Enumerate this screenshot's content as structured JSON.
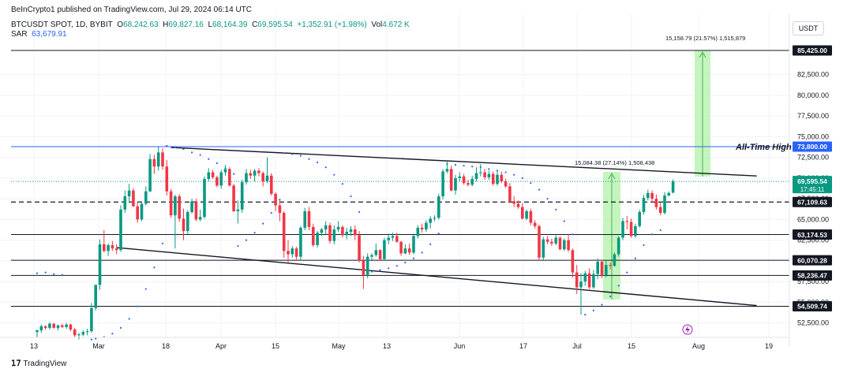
{
  "header": {
    "published": "BeInCrypto1 published on TradingView.com, Jul 29, 2024 06:14 UTC",
    "symbol": "BTCUSDT SPOT, 1D, BYBIT",
    "o_label": "O",
    "o_value": "68,242.63",
    "h_label": "H",
    "h_value": "69,827.16",
    "l_label": "L",
    "l_value": "68,164.39",
    "c_label": "C",
    "c_value": "69,595.54",
    "change": "+1,352.91 (+1.98%)",
    "vol_label": "Vol",
    "vol_value": "4.672 K",
    "sar_label": "SAR",
    "sar_value": "63,679.91",
    "currency": "USDT"
  },
  "footer": {
    "brand_icon": "tradingview-logo-icon",
    "brand": "TradingView"
  },
  "colors": {
    "up": "#089981",
    "down": "#f23645",
    "sar": "#2962ff",
    "ath_line": "#2962ff",
    "target_fill": "#b2f2a8",
    "target_arrow": "#4caf50"
  },
  "chart_data": {
    "type": "candlestick",
    "symbol": "BTCUSDT",
    "interval": "1D",
    "ylim": [
      51000,
      88500
    ],
    "x_ticks": [
      "13",
      "Mar",
      "18",
      "Apr",
      "15",
      "May",
      "13",
      "Jun",
      "17",
      "Jul",
      "15",
      "Aug",
      "19"
    ],
    "y_ticks": [
      "52,500.00",
      "55,000.00",
      "57,500.00",
      "60,000.00",
      "62,500.00",
      "65,000.00",
      "67,500.00",
      "70,000.00",
      "72,500.00",
      "75,000.00",
      "77,500.00",
      "80,000.00",
      "82,500.00"
    ],
    "price_levels": [
      {
        "value": 85425.0,
        "label": "85,425.00",
        "style": "solid"
      },
      {
        "value": 73800.0,
        "label": "73,800.00",
        "style": "ath"
      },
      {
        "value": 67109.63,
        "label": "67,109.63",
        "style": "dashed"
      },
      {
        "value": 63174.53,
        "label": "63,174.53",
        "style": "solid"
      },
      {
        "value": 60070.28,
        "label": "60,070.28",
        "style": "solid"
      },
      {
        "value": 58236.47,
        "label": "58,236.47",
        "style": "solid"
      },
      {
        "value": 54509.74,
        "label": "54,509.74",
        "style": "solid"
      }
    ],
    "last_price": {
      "value": 69595.54,
      "label": "69,595.54",
      "countdown": "17:45:11"
    },
    "annotations": {
      "ath_text": "All-Time High",
      "measure_1": "15,084.38 (27.14%) 1,508,438",
      "measure_2": "15,158.79 (21.57%) 1,515,879"
    },
    "channel": {
      "upper": [
        {
          "date": "2024-03-14",
          "price": 73700
        },
        {
          "date": "2024-08-01",
          "price": 70260
        }
      ],
      "lower": [
        {
          "date": "2024-03-01",
          "price": 61600
        },
        {
          "date": "2024-08-01",
          "price": 54600
        }
      ]
    },
    "candles": [
      [
        51400,
        51700,
        50800,
        51600
      ],
      [
        51600,
        52300,
        51300,
        52100
      ],
      [
        52100,
        52200,
        51700,
        51900
      ],
      [
        51900,
        52600,
        51700,
        52400
      ],
      [
        52400,
        52500,
        51800,
        51900
      ],
      [
        51900,
        52300,
        51600,
        52200
      ],
      [
        52200,
        52400,
        51900,
        52000
      ],
      [
        52000,
        52500,
        51800,
        52300
      ],
      [
        52300,
        52400,
        51500,
        51700
      ],
      [
        51700,
        51900,
        50800,
        51000
      ],
      [
        51000,
        51300,
        50500,
        51100
      ],
      [
        51100,
        51600,
        50900,
        51400
      ],
      [
        51400,
        51800,
        51000,
        51500
      ],
      [
        51500,
        54900,
        51300,
        54300
      ],
      [
        54300,
        57000,
        54000,
        57100
      ],
      [
        57100,
        62600,
        56500,
        62000
      ],
      [
        62000,
        63700,
        61000,
        61200
      ],
      [
        61200,
        62100,
        60600,
        61900
      ],
      [
        61900,
        62400,
        61200,
        61500
      ],
      [
        61500,
        62000,
        60800,
        61300
      ],
      [
        61300,
        66700,
        61100,
        66200
      ],
      [
        66200,
        68500,
        65800,
        67800
      ],
      [
        67800,
        69300,
        67000,
        68500
      ],
      [
        68500,
        68800,
        66500,
        66600
      ],
      [
        66600,
        67100,
        64600,
        65000
      ],
      [
        65000,
        67000,
        64800,
        66900
      ],
      [
        66900,
        69000,
        66700,
        68400
      ],
      [
        68400,
        72900,
        68300,
        72300
      ],
      [
        72300,
        72800,
        70500,
        71400
      ],
      [
        71400,
        73800,
        70900,
        73100
      ],
      [
        73100,
        73600,
        71000,
        71400
      ],
      [
        71400,
        72200,
        67900,
        68400
      ],
      [
        68400,
        68700,
        65200,
        65500
      ],
      [
        65500,
        68000,
        61500,
        67800
      ],
      [
        67800,
        68100,
        64700,
        65100
      ],
      [
        65100,
        66300,
        62500,
        63600
      ],
      [
        63600,
        66100,
        63200,
        65900
      ],
      [
        65900,
        67500,
        65700,
        67200
      ],
      [
        67200,
        67500,
        64800,
        65000
      ],
      [
        65000,
        66200,
        64800,
        65300
      ],
      [
        65300,
        70200,
        65100,
        69900
      ],
      [
        69900,
        71200,
        69600,
        70700
      ],
      [
        70700,
        71000,
        69900,
        70100
      ],
      [
        70100,
        70300,
        68900,
        69100
      ],
      [
        69100,
        71000,
        68700,
        70700
      ],
      [
        70700,
        71600,
        70300,
        71100
      ],
      [
        71100,
        71300,
        69000,
        69100
      ],
      [
        69100,
        69300,
        65900,
        66000
      ],
      [
        66000,
        67300,
        64500,
        66200
      ],
      [
        66200,
        69800,
        65800,
        69500
      ],
      [
        69500,
        71100,
        69200,
        70600
      ],
      [
        70600,
        71000,
        69900,
        70300
      ],
      [
        70300,
        71100,
        69600,
        70900
      ],
      [
        70900,
        71200,
        70200,
        70600
      ],
      [
        70600,
        70800,
        69000,
        69600
      ],
      [
        69600,
        72500,
        69400,
        70300
      ],
      [
        70300,
        70600,
        67900,
        68100
      ],
      [
        68100,
        68300,
        66000,
        66700
      ],
      [
        66700,
        67400,
        64800,
        65800
      ],
      [
        65800,
        66000,
        60400,
        61200
      ],
      [
        61200,
        62500,
        59800,
        60800
      ],
      [
        60800,
        61800,
        60400,
        61500
      ],
      [
        61500,
        61700,
        60000,
        60500
      ],
      [
        60500,
        64200,
        60000,
        64000
      ],
      [
        64000,
        66400,
        63700,
        66000
      ],
      [
        66000,
        66500,
        63700,
        64100
      ],
      [
        64100,
        64500,
        61700,
        61900
      ],
      [
        61900,
        63600,
        61600,
        63400
      ],
      [
        63400,
        64000,
        63000,
        63800
      ],
      [
        63800,
        64800,
        63200,
        64300
      ],
      [
        64300,
        64600,
        62100,
        62400
      ],
      [
        62400,
        64300,
        62000,
        63800
      ],
      [
        63800,
        64800,
        63500,
        64100
      ],
      [
        64100,
        64300,
        62800,
        63100
      ],
      [
        63100,
        64000,
        62600,
        63500
      ],
      [
        63500,
        64200,
        63000,
        63800
      ],
      [
        63800,
        64300,
        62500,
        63100
      ],
      [
        63100,
        63600,
        59800,
        60000
      ],
      [
        60000,
        60600,
        56600,
        58300
      ],
      [
        58300,
        60900,
        57900,
        60500
      ],
      [
        60500,
        60900,
        60100,
        60700
      ],
      [
        60700,
        62100,
        60500,
        61300
      ],
      [
        61300,
        61400,
        60100,
        60200
      ],
      [
        60200,
        62800,
        60000,
        62500
      ],
      [
        62500,
        63300,
        62000,
        62800
      ],
      [
        62800,
        63400,
        62400,
        63000
      ],
      [
        63000,
        63400,
        62200,
        62300
      ],
      [
        62300,
        62400,
        60600,
        60900
      ],
      [
        60900,
        62000,
        60800,
        61500
      ],
      [
        61500,
        62100,
        60700,
        61000
      ],
      [
        61000,
        63300,
        60800,
        63000
      ],
      [
        63000,
        64300,
        62700,
        64000
      ],
      [
        64000,
        64500,
        63400,
        63800
      ],
      [
        63800,
        64900,
        63500,
        64600
      ],
      [
        64600,
        65400,
        63900,
        65100
      ],
      [
        65100,
        65500,
        64800,
        65200
      ],
      [
        65200,
        68100,
        65000,
        67800
      ],
      [
        67800,
        71100,
        67400,
        70800
      ],
      [
        70800,
        72000,
        70600,
        71100
      ],
      [
        71100,
        71500,
        68400,
        68500
      ],
      [
        68500,
        70400,
        68000,
        70000
      ],
      [
        70000,
        70700,
        69600,
        70200
      ],
      [
        70200,
        70500,
        69200,
        69400
      ],
      [
        69400,
        69800,
        69000,
        69200
      ],
      [
        69200,
        70300,
        69000,
        69900
      ],
      [
        69900,
        71300,
        69600,
        70600
      ],
      [
        70600,
        71700,
        70200,
        70700
      ],
      [
        70700,
        71100,
        69800,
        70100
      ],
      [
        70100,
        70900,
        69800,
        70500
      ],
      [
        70500,
        70800,
        69100,
        69300
      ],
      [
        69300,
        70900,
        69100,
        70400
      ],
      [
        70400,
        70800,
        69400,
        69600
      ],
      [
        69600,
        69900,
        68800,
        69000
      ],
      [
        69000,
        69400,
        67000,
        67200
      ],
      [
        67200,
        67800,
        66500,
        66900
      ],
      [
        66900,
        67300,
        66300,
        66500
      ],
      [
        66500,
        67000,
        65000,
        65100
      ],
      [
        65100,
        66200,
        64900,
        66000
      ],
      [
        66000,
        66300,
        64300,
        64600
      ],
      [
        64600,
        64900,
        63900,
        64200
      ],
      [
        64200,
        64400,
        60000,
        60400
      ],
      [
        60400,
        62900,
        60100,
        62600
      ],
      [
        62600,
        63000,
        62000,
        62300
      ],
      [
        62300,
        62700,
        61800,
        62100
      ],
      [
        62100,
        63100,
        61900,
        62800
      ],
      [
        62800,
        62900,
        61300,
        61400
      ],
      [
        61400,
        62700,
        61200,
        62500
      ],
      [
        62500,
        63200,
        61100,
        61300
      ],
      [
        61300,
        61500,
        58000,
        58600
      ],
      [
        58600,
        59500,
        56000,
        56800
      ],
      [
        56800,
        58500,
        53500,
        57500
      ],
      [
        57500,
        58800,
        57000,
        58500
      ],
      [
        58500,
        59100,
        56600,
        56800
      ],
      [
        56800,
        58900,
        56600,
        58400
      ],
      [
        58400,
        60300,
        57800,
        59900
      ],
      [
        59900,
        60100,
        57900,
        58300
      ],
      [
        58300,
        60000,
        58000,
        59500
      ],
      [
        59500,
        59800,
        59000,
        59400
      ],
      [
        59400,
        61000,
        59300,
        60800
      ],
      [
        60800,
        63000,
        60500,
        62800
      ],
      [
        62800,
        65200,
        62500,
        64800
      ],
      [
        64800,
        65400,
        63800,
        64700
      ],
      [
        64700,
        65100,
        62800,
        63000
      ],
      [
        63000,
        64500,
        62800,
        64200
      ],
      [
        64200,
        66200,
        64000,
        65900
      ],
      [
        65900,
        68000,
        65600,
        67600
      ],
      [
        67600,
        68600,
        67300,
        68200
      ],
      [
        68200,
        68500,
        67100,
        67500
      ],
      [
        67500,
        68000,
        66200,
        66500
      ],
      [
        66500,
        67000,
        65500,
        65800
      ],
      [
        65800,
        68300,
        65600,
        67900
      ],
      [
        67900,
        68400,
        67800,
        68200
      ],
      [
        68242.63,
        69827.16,
        68164.39,
        69595.54
      ]
    ],
    "sar": [
      [
        0,
        58500
      ],
      [
        2,
        58600
      ],
      [
        4,
        58400
      ],
      [
        6,
        58300
      ],
      [
        13,
        50500
      ],
      [
        14,
        50600
      ],
      [
        16,
        50800
      ],
      [
        18,
        51200
      ],
      [
        20,
        51900
      ],
      [
        22,
        53000
      ],
      [
        24,
        54500
      ],
      [
        26,
        56600
      ],
      [
        28,
        59200
      ],
      [
        30,
        62100
      ],
      [
        31,
        73900
      ],
      [
        33,
        73700
      ],
      [
        35,
        73500
      ],
      [
        37,
        73100
      ],
      [
        39,
        72800
      ],
      [
        41,
        72300
      ],
      [
        43,
        71800
      ],
      [
        45,
        71200
      ],
      [
        47,
        70500
      ],
      [
        48,
        61800
      ],
      [
        50,
        62500
      ],
      [
        52,
        63400
      ],
      [
        54,
        64500
      ],
      [
        56,
        65800
      ],
      [
        58,
        67400
      ],
      [
        59,
        73000
      ],
      [
        61,
        72900
      ],
      [
        63,
        72700
      ],
      [
        65,
        72300
      ],
      [
        67,
        71900
      ],
      [
        69,
        71300
      ],
      [
        71,
        70400
      ],
      [
        73,
        69300
      ],
      [
        75,
        67800
      ],
      [
        77,
        65900
      ],
      [
        78,
        58500
      ],
      [
        80,
        58700
      ],
      [
        82,
        58900
      ],
      [
        84,
        59100
      ],
      [
        86,
        59400
      ],
      [
        88,
        59800
      ],
      [
        90,
        60300
      ],
      [
        92,
        61000
      ],
      [
        94,
        62000
      ],
      [
        96,
        63300
      ],
      [
        98,
        71700
      ],
      [
        100,
        71600
      ],
      [
        102,
        71500
      ],
      [
        104,
        71400
      ],
      [
        106,
        71300
      ],
      [
        108,
        71100
      ],
      [
        110,
        70900
      ],
      [
        112,
        70700
      ],
      [
        114,
        70400
      ],
      [
        116,
        70000
      ],
      [
        118,
        69400
      ],
      [
        120,
        68600
      ],
      [
        122,
        67500
      ],
      [
        124,
        66200
      ],
      [
        126,
        64800
      ],
      [
        128,
        63200
      ],
      [
        131,
        53500
      ],
      [
        133,
        54000
      ],
      [
        135,
        54700
      ],
      [
        137,
        55700
      ],
      [
        139,
        57000
      ],
      [
        141,
        58600
      ],
      [
        143,
        60300
      ],
      [
        145,
        61900
      ],
      [
        147,
        63200
      ],
      [
        149,
        63700
      ]
    ]
  }
}
